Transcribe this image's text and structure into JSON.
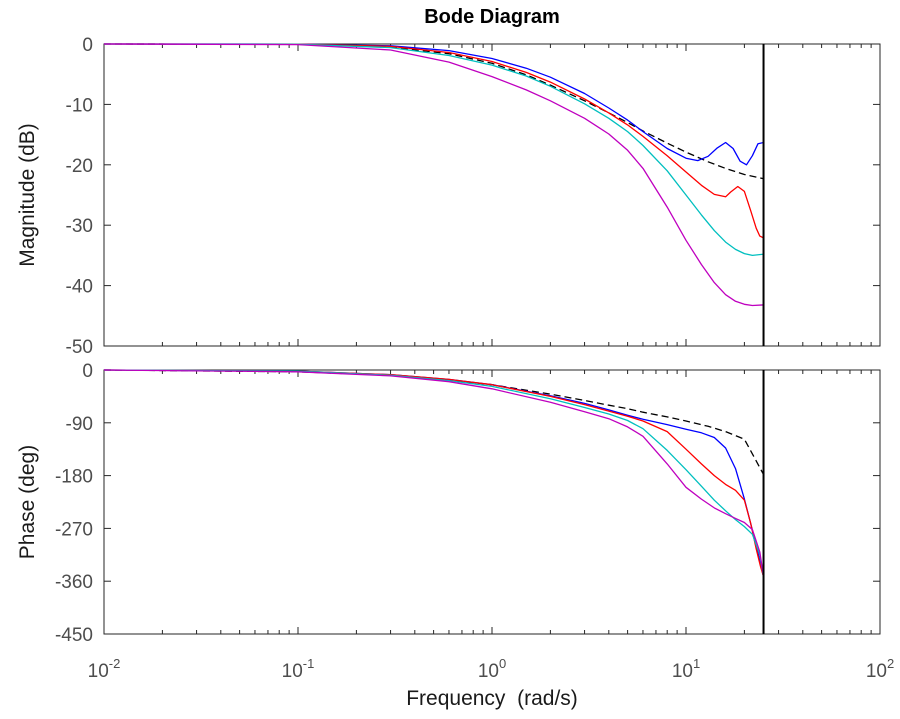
{
  "chart_data": {
    "type": "line",
    "title": "Bode Diagram",
    "xlabel": "Frequency  (rad/s)",
    "x_scale": "log",
    "xlim": [
      0.01,
      100
    ],
    "x_ticks": [
      {
        "value": 0.01,
        "base": "10",
        "exp": "-2"
      },
      {
        "value": 0.1,
        "base": "10",
        "exp": "-1"
      },
      {
        "value": 1,
        "base": "10",
        "exp": "0"
      },
      {
        "value": 10,
        "base": "10",
        "exp": "1"
      },
      {
        "value": 100,
        "base": "10",
        "exp": "2"
      }
    ],
    "vertical_line_x": 25.1,
    "grid": false,
    "colors": {
      "blue": "#0000ff",
      "red": "#ff0000",
      "cyan": "#00bfbf",
      "magenta": "#bf00bf",
      "dashed": "#000000"
    },
    "panels": [
      {
        "id": "magnitude",
        "ylabel": "Magnitude (dB)",
        "ylim": [
          -50,
          0
        ],
        "y_ticks": [
          0,
          -10,
          -20,
          -30,
          -40,
          -50
        ],
        "series": [
          {
            "color_key": "dashed",
            "dashed": true,
            "x": [
              0.01,
              0.1,
              0.3,
              0.6,
              1,
              1.5,
              2,
              3,
              4,
              5,
              6,
              8,
              10,
              13,
              16,
              20,
              25.1
            ],
            "y": [
              0,
              -0.05,
              -0.5,
              -1.6,
              -3.2,
              -5.1,
              -6.8,
              -9.4,
              -11.4,
              -13.0,
              -14.4,
              -16.4,
              -17.9,
              -19.5,
              -20.6,
              -21.6,
              -22.3
            ]
          },
          {
            "color_key": "blue",
            "x": [
              0.01,
              0.1,
              0.3,
              0.6,
              1,
              1.5,
              2,
              3,
              4,
              5,
              6,
              8,
              10,
              11.5,
              13,
              14.5,
              16,
              17.5,
              19,
              20.5,
              22,
              23.5,
              25.1
            ],
            "y": [
              0,
              -0.02,
              -0.3,
              -1.1,
              -2.4,
              -4.0,
              -5.5,
              -8.2,
              -10.6,
              -12.6,
              -14.5,
              -17.3,
              -18.9,
              -19.3,
              -18.6,
              -17.2,
              -16.3,
              -17.3,
              -19.4,
              -20.0,
              -18.5,
              -16.5,
              -16.3
            ]
          },
          {
            "color_key": "red",
            "x": [
              0.01,
              0.1,
              0.3,
              0.6,
              1,
              1.5,
              2,
              3,
              4,
              5,
              6,
              8,
              10,
              12,
              14,
              16,
              17,
              18.5,
              20,
              21.5,
              23,
              24,
              25.1
            ],
            "y": [
              0,
              -0.03,
              -0.4,
              -1.4,
              -2.9,
              -4.7,
              -6.3,
              -9.1,
              -11.4,
              -13.4,
              -15.3,
              -18.5,
              -21.2,
              -23.4,
              -24.9,
              -25.3,
              -24.5,
              -23.6,
              -24.4,
              -27.5,
              -30.5,
              -31.8,
              -32.1
            ]
          },
          {
            "color_key": "cyan",
            "x": [
              0.01,
              0.1,
              0.3,
              0.6,
              1,
              1.5,
              2,
              3,
              4,
              5,
              6,
              8,
              10,
              12,
              14,
              16,
              18,
              20,
              22,
              25.1
            ],
            "y": [
              0,
              -0.05,
              -0.6,
              -1.9,
              -3.5,
              -5.3,
              -7.0,
              -9.9,
              -12.3,
              -14.5,
              -16.8,
              -21.0,
              -25.0,
              -28.3,
              -30.9,
              -32.8,
              -34.0,
              -34.7,
              -35.0,
              -34.8
            ]
          },
          {
            "color_key": "magenta",
            "x": [
              0.01,
              0.1,
              0.3,
              0.6,
              1,
              1.5,
              2,
              3,
              4,
              5,
              6,
              8,
              10,
              12,
              14,
              16,
              18,
              20,
              22,
              25.1
            ],
            "y": [
              0,
              -0.1,
              -1.0,
              -3.0,
              -5.4,
              -7.6,
              -9.4,
              -12.3,
              -14.9,
              -17.6,
              -20.6,
              -27.0,
              -32.5,
              -36.5,
              -39.5,
              -41.5,
              -42.6,
              -43.1,
              -43.3,
              -43.2
            ]
          }
        ]
      },
      {
        "id": "phase",
        "ylabel": "Phase (deg)",
        "ylim": [
          -450,
          0
        ],
        "y_ticks": [
          0,
          -90,
          -180,
          -270,
          -360,
          -450
        ],
        "series": [
          {
            "color_key": "dashed",
            "dashed": true,
            "x": [
              0.01,
              0.1,
              0.3,
              0.6,
              1,
              2,
              3,
              4,
              5,
              6,
              8,
              10,
              13,
              16,
              20,
              25.1
            ],
            "y": [
              0,
              -3,
              -9,
              -17,
              -25,
              -41,
              -52,
              -60,
              -66,
              -72,
              -80,
              -87,
              -96,
              -105,
              -118,
              -178
            ]
          },
          {
            "color_key": "blue",
            "x": [
              0.01,
              0.1,
              0.3,
              0.6,
              1,
              2,
              3,
              4,
              5,
              6,
              8,
              10,
              12,
              14,
              16,
              18,
              20,
              22,
              23.5,
              25.1
            ],
            "y": [
              0,
              -2,
              -8,
              -16,
              -25,
              -44,
              -57,
              -68,
              -77,
              -84,
              -93,
              -101,
              -107,
              -115,
              -133,
              -168,
              -220,
              -273,
              -312,
              -352
            ]
          },
          {
            "color_key": "red",
            "x": [
              0.01,
              0.1,
              0.3,
              0.6,
              1,
              2,
              3,
              4,
              5,
              6,
              8,
              10,
              12,
              14,
              16,
              18,
              20,
              21.5,
              23,
              24.2,
              25.1
            ],
            "y": [
              0,
              -2,
              -8,
              -16,
              -25,
              -45,
              -59,
              -70,
              -79,
              -87,
              -105,
              -135,
              -160,
              -180,
              -195,
              -205,
              -222,
              -260,
              -305,
              -335,
              -352
            ]
          },
          {
            "color_key": "cyan",
            "x": [
              0.01,
              0.1,
              0.3,
              0.6,
              1,
              2,
              3,
              4,
              5,
              6,
              8,
              10,
              12,
              14,
              16,
              18,
              20,
              22,
              24,
              25.1
            ],
            "y": [
              0,
              -2,
              -9,
              -18,
              -28,
              -49,
              -64,
              -75,
              -86,
              -100,
              -137,
              -170,
              -198,
              -222,
              -240,
              -255,
              -267,
              -280,
              -315,
              -352
            ]
          },
          {
            "color_key": "magenta",
            "x": [
              0.01,
              0.1,
              0.3,
              0.6,
              1,
              2,
              3,
              4,
              5,
              6,
              8,
              10,
              12,
              14,
              16,
              18,
              20,
              22,
              24,
              25.1
            ],
            "y": [
              0,
              -3,
              -10,
              -20,
              -32,
              -55,
              -71,
              -83,
              -97,
              -113,
              -160,
              -200,
              -220,
              -235,
              -245,
              -253,
              -260,
              -272,
              -310,
              -352
            ]
          }
        ]
      }
    ]
  }
}
